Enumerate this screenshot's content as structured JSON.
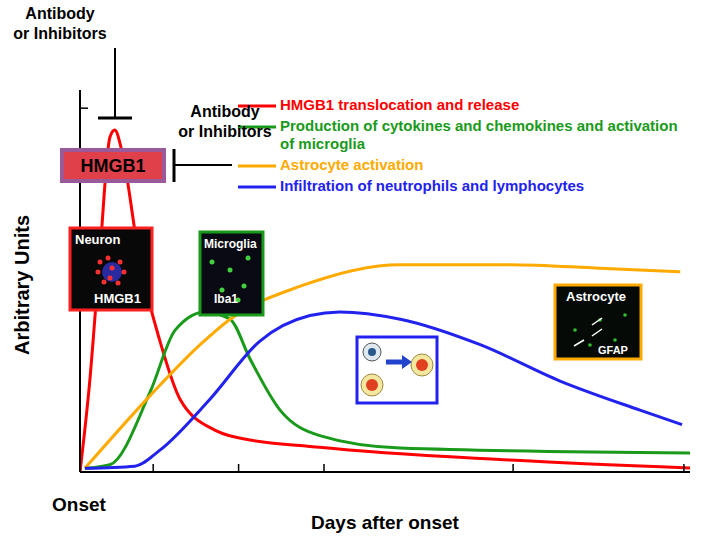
{
  "chart_data": {
    "type": "line",
    "ylabel": "Arbitrary Units",
    "xlabel": "Days after onset",
    "origin_label": "Onset",
    "xlim": [
      0,
      100
    ],
    "xticks": [
      0,
      12,
      26,
      40,
      71,
      99
    ],
    "ylim": [
      0,
      10.5
    ],
    "yticks": [
      0,
      5,
      10
    ],
    "tick_labels": false,
    "grid": false,
    "legend": "upper right",
    "series": [
      {
        "name": "HMGB1 translocation and release",
        "color": "#ff0000",
        "x": [
          0,
          1.6,
          3.3,
          4.9,
          5.7,
          6.9,
          9.8,
          13.1,
          16.4,
          22.1,
          25.4,
          39.3,
          70.5,
          100
        ],
        "values": [
          0,
          2.5,
          6.1,
          9.2,
          9.4,
          8.8,
          5.8,
          3.6,
          2.0,
          1.15,
          0.96,
          0.68,
          0.33,
          0.11
        ]
      },
      {
        "name": "Production of cytokines and chemokines and activation of microglia",
        "color": "#1a9a1a",
        "x": [
          0.8,
          4.9,
          11.5,
          15.6,
          20.5,
          24.6,
          27.9,
          32.8,
          39.3,
          52.5,
          100
        ],
        "values": [
          0.1,
          0.2,
          2.2,
          3.9,
          4.4,
          4.2,
          3.1,
          1.7,
          1.0,
          0.66,
          0.52
        ]
      },
      {
        "name": "Astrocyte activation",
        "color": "#ffaa00",
        "x": [
          0.8,
          11.5,
          19.7,
          24.6,
          36,
          52.5,
          70.5,
          85.2,
          98.4
        ],
        "values": [
          0.1,
          2.1,
          3.5,
          4.2,
          5.1,
          5.7,
          5.7,
          5.6,
          5.5
        ]
      },
      {
        "name": "Infiltration of neutrophils and lymphocytes",
        "color": "#2222ee",
        "x": [
          0.8,
          9,
          13.1,
          21.3,
          29.5,
          37.7,
          42.6,
          52.5,
          65.6,
          78.7,
          91.8,
          98.7
        ],
        "values": [
          0.1,
          0.16,
          0.6,
          2.0,
          3.6,
          4.3,
          4.4,
          4.2,
          3.5,
          2.5,
          1.7,
          1.3
        ]
      }
    ],
    "annotations": {
      "inhibitors": [
        "Antibody or Inhibitors",
        "Antibody or Inhibitors"
      ],
      "box": "HMGB1",
      "insets": [
        {
          "title": "Neuron",
          "label": "HMGB1"
        },
        {
          "title": "Microglia",
          "label": "Iba1"
        },
        {
          "title": "Astrocyte",
          "label": "GFAP"
        }
      ]
    }
  }
}
